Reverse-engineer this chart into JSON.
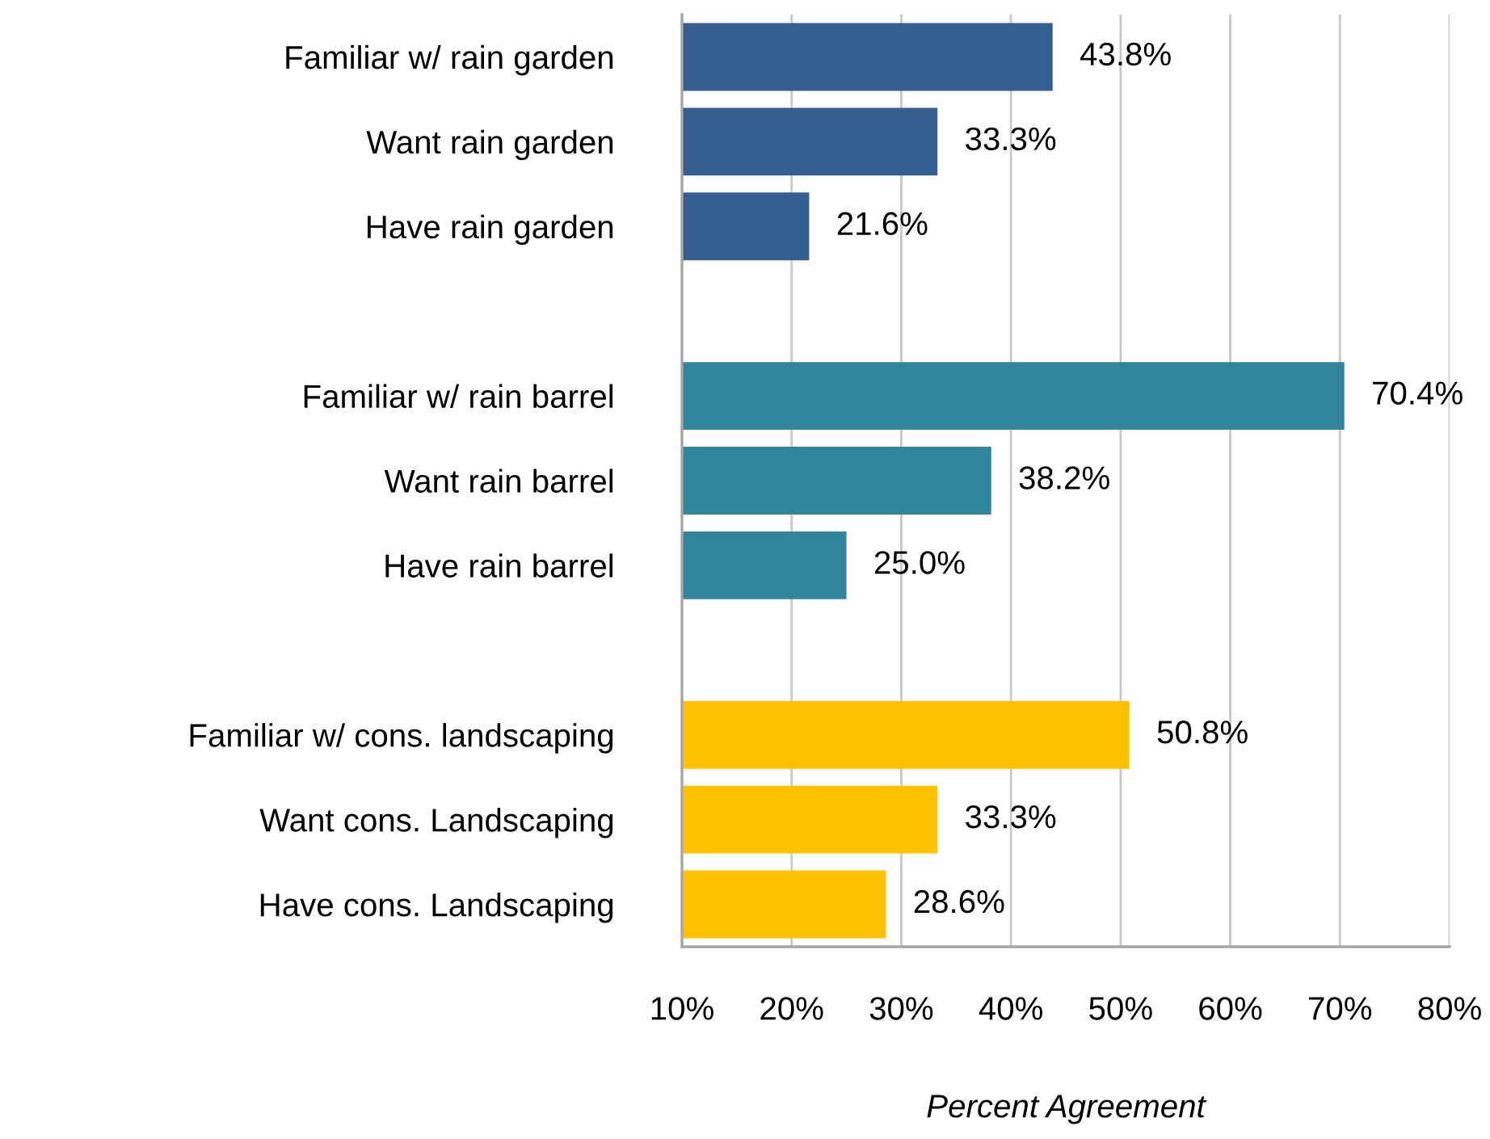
{
  "chart_data": {
    "type": "bar",
    "orientation": "horizontal",
    "xlabel": "Percent Agreement",
    "categories": [
      "Familiar w/ rain garden",
      "Want rain garden",
      "Have rain garden",
      null,
      "Familiar w/ rain barrel",
      "Want rain barrel",
      "Have rain barrel",
      null,
      "Familiar w/ cons. landscaping",
      "Want cons. Landscaping",
      "Have cons. Landscaping"
    ],
    "values": [
      43.8,
      33.3,
      21.6,
      null,
      70.4,
      38.2,
      25.0,
      null,
      50.8,
      33.3,
      28.6
    ],
    "colors": [
      "#365f91",
      "#365f91",
      "#365f91",
      null,
      "#31859c",
      "#31859c",
      "#31859c",
      null,
      "#ffc000",
      "#ffc000",
      "#ffc000"
    ],
    "value_labels": [
      "43.8%",
      "33.3%",
      "21.6%",
      null,
      "70.4%",
      "38.2%",
      "25.0%",
      null,
      "50.8%",
      "33.3%",
      "28.6%"
    ],
    "xlim": [
      10,
      80
    ],
    "xticks": [
      {
        "value": 10,
        "label": "10%"
      },
      {
        "value": 20,
        "label": "20%"
      },
      {
        "value": 30,
        "label": "30%"
      },
      {
        "value": 40,
        "label": "40%"
      },
      {
        "value": 50,
        "label": "50%"
      },
      {
        "value": 60,
        "label": "60%"
      },
      {
        "value": 70,
        "label": "70%"
      },
      {
        "value": 80,
        "label": "80%"
      }
    ],
    "grid": "x",
    "legend": false
  }
}
